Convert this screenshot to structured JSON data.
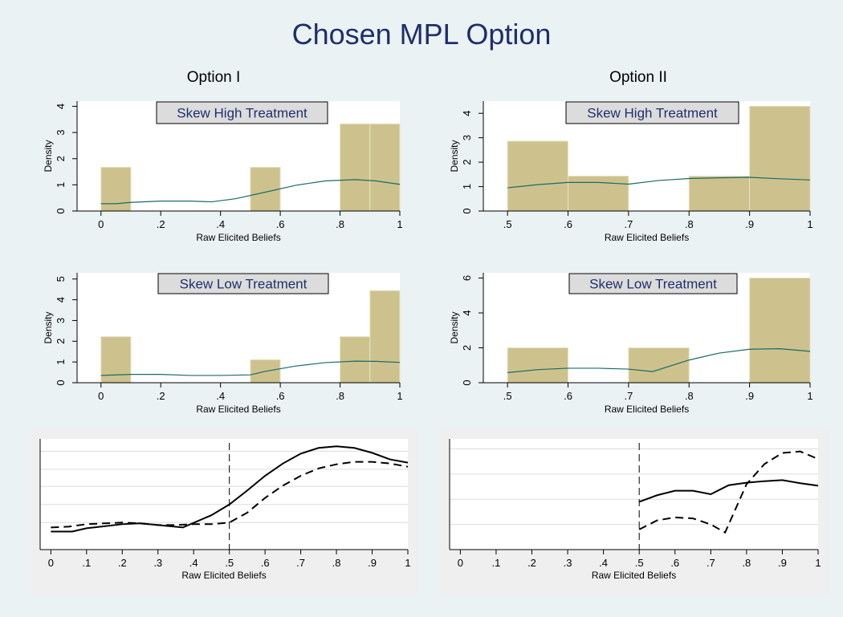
{
  "title": "Chosen MPL Option",
  "column_titles": [
    "Option I",
    "Option II"
  ],
  "colors": {
    "background": "#eaf2f3",
    "plot_background": "#ffffff",
    "bottom_panel_background": "#efefef",
    "bar_fill": "#cdc28d",
    "bar_edge": "#e8e2c4",
    "kde_line": "#1a6b68",
    "title": "#1e2f6b",
    "label_box_fill": "#dcdcdc"
  },
  "chart_data": [
    {
      "type": "bar",
      "id": "opt1_high",
      "column": "Option I",
      "label": "Skew High Treatment",
      "xlabel": "Raw Elicited Beliefs",
      "ylabel": "Density",
      "xlim": [
        -0.08,
        1.0
      ],
      "ylim": [
        0,
        4.2
      ],
      "xticks": [
        0,
        0.2,
        0.4,
        0.6,
        0.8,
        1
      ],
      "xtick_labels": [
        "0",
        ".2",
        ".4",
        ".6",
        ".8",
        "1"
      ],
      "yticks": [
        0,
        1,
        2,
        3,
        4
      ],
      "ytick_labels": [
        "0",
        "1",
        "2",
        "3",
        "4"
      ],
      "bins": [
        {
          "x0": 0.0,
          "x1": 0.1,
          "height": 1.67
        },
        {
          "x0": 0.5,
          "x1": 0.6,
          "height": 1.67
        },
        {
          "x0": 0.8,
          "x1": 0.9,
          "height": 3.33
        },
        {
          "x0": 0.9,
          "x1": 1.0,
          "height": 3.33
        }
      ],
      "kde": {
        "x": [
          0,
          0.05,
          0.1,
          0.2,
          0.3,
          0.37,
          0.45,
          0.55,
          0.65,
          0.75,
          0.85,
          0.92,
          1.0
        ],
        "y": [
          0.28,
          0.28,
          0.33,
          0.38,
          0.38,
          0.35,
          0.47,
          0.72,
          0.98,
          1.15,
          1.2,
          1.15,
          1.02
        ]
      }
    },
    {
      "type": "bar",
      "id": "opt2_high",
      "column": "Option II",
      "label": "Skew High Treatment",
      "xlabel": "Raw Elicited Beliefs",
      "ylabel": "Density",
      "xlim": [
        0.46,
        1.0
      ],
      "ylim": [
        0,
        4.5
      ],
      "xticks": [
        0.5,
        0.6,
        0.7,
        0.8,
        0.9,
        1
      ],
      "xtick_labels": [
        ".5",
        ".6",
        ".7",
        ".8",
        ".9",
        "1"
      ],
      "yticks": [
        0,
        1,
        2,
        3,
        4
      ],
      "ytick_labels": [
        "0",
        "1",
        "2",
        "3",
        "4"
      ],
      "bins": [
        {
          "x0": 0.5,
          "x1": 0.6,
          "height": 2.86
        },
        {
          "x0": 0.6,
          "x1": 0.7,
          "height": 1.43
        },
        {
          "x0": 0.8,
          "x1": 0.9,
          "height": 1.43
        },
        {
          "x0": 0.9,
          "x1": 1.0,
          "height": 4.29
        }
      ],
      "kde": {
        "x": [
          0.5,
          0.55,
          0.6,
          0.65,
          0.7,
          0.75,
          0.8,
          0.85,
          0.9,
          0.95,
          1.0
        ],
        "y": [
          0.95,
          1.08,
          1.17,
          1.17,
          1.1,
          1.25,
          1.33,
          1.36,
          1.38,
          1.32,
          1.27
        ]
      }
    },
    {
      "type": "bar",
      "id": "opt1_low",
      "column": "Option I",
      "label": "Skew Low Treatment",
      "xlabel": "Raw Elicited Beliefs",
      "ylabel": "Density",
      "xlim": [
        -0.08,
        1.0
      ],
      "ylim": [
        0,
        5.3
      ],
      "xticks": [
        0,
        0.2,
        0.4,
        0.6,
        0.8,
        1
      ],
      "xtick_labels": [
        "0",
        ".2",
        ".4",
        ".6",
        ".8",
        "1"
      ],
      "yticks": [
        0,
        1,
        2,
        3,
        4,
        5
      ],
      "ytick_labels": [
        "0",
        "1",
        "2",
        "3",
        "4",
        "5"
      ],
      "bins": [
        {
          "x0": 0.0,
          "x1": 0.1,
          "height": 2.22
        },
        {
          "x0": 0.5,
          "x1": 0.6,
          "height": 1.11
        },
        {
          "x0": 0.8,
          "x1": 0.9,
          "height": 2.22
        },
        {
          "x0": 0.9,
          "x1": 1.0,
          "height": 4.44
        }
      ],
      "kde": {
        "x": [
          0,
          0.1,
          0.2,
          0.3,
          0.4,
          0.5,
          0.55,
          0.65,
          0.75,
          0.85,
          0.92,
          1.0
        ],
        "y": [
          0.35,
          0.4,
          0.4,
          0.35,
          0.35,
          0.38,
          0.55,
          0.8,
          0.97,
          1.04,
          1.03,
          0.98
        ]
      }
    },
    {
      "type": "bar",
      "id": "opt2_low",
      "column": "Option II",
      "label": "Skew Low Treatment",
      "xlabel": "Raw Elicited Beliefs",
      "ylabel": "Density",
      "xlim": [
        0.46,
        1.0
      ],
      "ylim": [
        0,
        6.3
      ],
      "xticks": [
        0.5,
        0.6,
        0.7,
        0.8,
        0.9,
        1
      ],
      "xtick_labels": [
        ".5",
        ".6",
        ".7",
        ".8",
        ".9",
        "1"
      ],
      "yticks": [
        0,
        2,
        4,
        6
      ],
      "ytick_labels": [
        "0",
        "2",
        "4",
        "6"
      ],
      "bins": [
        {
          "x0": 0.5,
          "x1": 0.6,
          "height": 2.0
        },
        {
          "x0": 0.7,
          "x1": 0.8,
          "height": 2.0
        },
        {
          "x0": 0.9,
          "x1": 1.0,
          "height": 6.0
        }
      ],
      "kde": {
        "x": [
          0.5,
          0.55,
          0.6,
          0.65,
          0.7,
          0.74,
          0.8,
          0.85,
          0.9,
          0.95,
          1.0
        ],
        "y": [
          0.58,
          0.75,
          0.83,
          0.83,
          0.78,
          0.64,
          1.3,
          1.7,
          1.92,
          1.95,
          1.8
        ]
      }
    },
    {
      "type": "line",
      "id": "opt1_compare",
      "column": "Option I",
      "xlabel": "Raw Elicited Beliefs",
      "xlim": [
        -0.03,
        1.0
      ],
      "ylim": [
        0,
        1.35
      ],
      "xticks": [
        0,
        0.1,
        0.2,
        0.3,
        0.4,
        0.5,
        0.6,
        0.7,
        0.8,
        0.9,
        1
      ],
      "xtick_labels": [
        "0",
        ".1",
        ".2",
        ".3",
        ".4",
        ".5",
        ".6",
        ".7",
        ".8",
        ".9",
        "1"
      ],
      "gridlines_y": [
        0.33,
        0.55,
        0.77,
        0.98,
        1.2
      ],
      "vline": 0.5,
      "series": [
        {
          "style": "solid",
          "x": [
            0,
            0.06,
            0.1,
            0.2,
            0.25,
            0.3,
            0.37,
            0.45,
            0.5,
            0.55,
            0.6,
            0.65,
            0.7,
            0.75,
            0.8,
            0.85,
            0.9,
            0.95,
            1.0
          ],
          "y": [
            0.22,
            0.22,
            0.26,
            0.31,
            0.32,
            0.3,
            0.27,
            0.42,
            0.55,
            0.72,
            0.9,
            1.05,
            1.17,
            1.24,
            1.26,
            1.24,
            1.18,
            1.1,
            1.06
          ]
        },
        {
          "style": "dashed",
          "x": [
            0,
            0.05,
            0.1,
            0.2,
            0.25,
            0.3,
            0.35,
            0.4,
            0.45,
            0.5,
            0.55,
            0.6,
            0.65,
            0.7,
            0.75,
            0.8,
            0.85,
            0.9,
            0.95,
            1.0
          ],
          "y": [
            0.27,
            0.28,
            0.31,
            0.33,
            0.32,
            0.3,
            0.3,
            0.31,
            0.31,
            0.33,
            0.45,
            0.63,
            0.78,
            0.9,
            0.99,
            1.04,
            1.07,
            1.07,
            1.05,
            1.01
          ]
        }
      ]
    },
    {
      "type": "line",
      "id": "opt2_compare",
      "column": "Option II",
      "xlabel": "Raw Elicited Beliefs",
      "xlim": [
        -0.03,
        1.0
      ],
      "ylim": [
        0,
        2.2
      ],
      "xticks": [
        0,
        0.1,
        0.2,
        0.3,
        0.4,
        0.5,
        0.6,
        0.7,
        0.8,
        0.9,
        1
      ],
      "xtick_labels": [
        "0",
        ".1",
        ".2",
        ".3",
        ".4",
        ".5",
        ".6",
        ".7",
        ".8",
        ".9",
        "1"
      ],
      "gridlines_y": [
        0.5,
        1.0,
        1.5,
        2.0
      ],
      "vline": 0.5,
      "series": [
        {
          "style": "solid",
          "x": [
            0.5,
            0.55,
            0.6,
            0.65,
            0.7,
            0.75,
            0.8,
            0.85,
            0.9,
            0.95,
            1.0
          ],
          "y": [
            0.95,
            1.08,
            1.17,
            1.17,
            1.1,
            1.28,
            1.33,
            1.36,
            1.38,
            1.32,
            1.27
          ]
        },
        {
          "style": "dashed",
          "x": [
            0.5,
            0.55,
            0.6,
            0.65,
            0.7,
            0.74,
            0.8,
            0.85,
            0.9,
            0.95,
            1.0
          ],
          "y": [
            0.4,
            0.58,
            0.64,
            0.62,
            0.5,
            0.34,
            1.3,
            1.7,
            1.92,
            1.95,
            1.8
          ]
        }
      ]
    }
  ]
}
